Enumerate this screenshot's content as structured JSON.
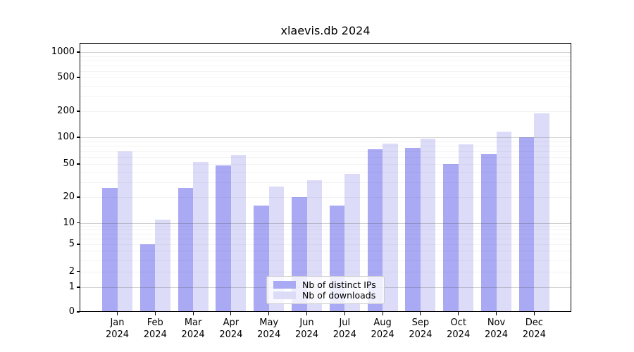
{
  "chart_data": {
    "type": "bar",
    "title": "xlaevis.db 2024",
    "categories": [
      "Jan",
      "Feb",
      "Mar",
      "Apr",
      "May",
      "Jun",
      "Jul",
      "Aug",
      "Sep",
      "Oct",
      "Nov",
      "Dec"
    ],
    "x_year_label": "2024",
    "series": [
      {
        "name": "Nb of distinct IPs",
        "color": "#a9a9f4",
        "values": [
          26,
          5,
          26,
          48,
          16,
          20,
          16,
          73,
          76,
          50,
          65,
          101
        ]
      },
      {
        "name": "Nb of downloads",
        "color": "#dcdcf9",
        "values": [
          70,
          11,
          53,
          64,
          27,
          32,
          38,
          85,
          96,
          83,
          116,
          190
        ]
      }
    ],
    "yscale": "log",
    "ylim": [
      0,
      1267
    ],
    "y_tick_values": [
      1000,
      500,
      200,
      100,
      50,
      20,
      10,
      5,
      2,
      1,
      0
    ],
    "y_tick_labels": [
      "1000",
      "500",
      "200",
      "100",
      "50",
      "20",
      "10",
      "5",
      "2",
      "1",
      "0"
    ],
    "grid": "both",
    "legend_position": "lower center",
    "xlabel": "",
    "ylabel": ""
  },
  "colors": {
    "background": "#ffffff",
    "bar_distinct_ips": "#a9a9f4",
    "bar_downloads": "#dcdcf9",
    "legend_border": "#cccccc",
    "spine": "#000000"
  }
}
